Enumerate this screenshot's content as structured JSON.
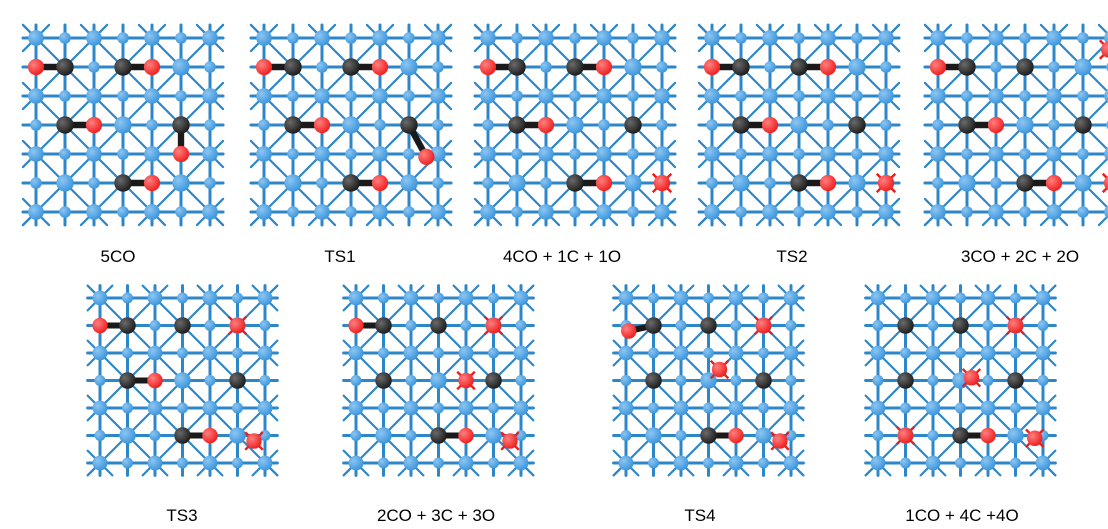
{
  "colors": {
    "lattice": "#2d86c8",
    "metal_atom": "#3a94dc",
    "metal_atom_highlight": "#8cc6f2",
    "carbon": "#1a1a1a",
    "oxygen": "#ee1c1c",
    "label_text": "#000000"
  },
  "panels": [
    {
      "id": "p1",
      "label": "5CO",
      "molecules": [
        {
          "type": "CO",
          "c": [
            1,
            1
          ],
          "o": [
            0,
            1
          ]
        },
        {
          "type": "CO",
          "c": [
            3,
            1
          ],
          "o": [
            4,
            1
          ]
        },
        {
          "type": "CO",
          "c": [
            1,
            3
          ],
          "o": [
            2,
            3
          ]
        },
        {
          "type": "CO",
          "c": [
            5,
            3
          ],
          "o": [
            5,
            4
          ]
        },
        {
          "type": "CO",
          "c": [
            3,
            5
          ],
          "o": [
            4,
            5
          ]
        }
      ]
    },
    {
      "id": "p2",
      "label": "TS1",
      "molecules": [
        {
          "type": "CO",
          "c": [
            1,
            1
          ],
          "o": [
            0,
            1
          ]
        },
        {
          "type": "CO",
          "c": [
            3,
            1
          ],
          "o": [
            4,
            1
          ]
        },
        {
          "type": "CO",
          "c": [
            1,
            3
          ],
          "o": [
            2,
            3
          ]
        },
        {
          "type": "CO",
          "c": [
            5,
            3
          ],
          "o": [
            5.6,
            4.1
          ]
        },
        {
          "type": "CO",
          "c": [
            3,
            5
          ],
          "o": [
            4,
            5
          ]
        }
      ]
    },
    {
      "id": "p3",
      "label": "4CO + 1C + 1O",
      "molecules": [
        {
          "type": "CO",
          "c": [
            1,
            1
          ],
          "o": [
            0,
            1
          ]
        },
        {
          "type": "CO",
          "c": [
            3,
            1
          ],
          "o": [
            4,
            1
          ]
        },
        {
          "type": "CO",
          "c": [
            1,
            3
          ],
          "o": [
            2,
            3
          ]
        },
        {
          "type": "C",
          "c": [
            5,
            3
          ]
        },
        {
          "type": "CO",
          "c": [
            3,
            5
          ],
          "o": [
            4,
            5
          ]
        },
        {
          "type": "O",
          "o": [
            6,
            5
          ]
        }
      ]
    },
    {
      "id": "p4",
      "label": "TS2",
      "molecules": [
        {
          "type": "CO",
          "c": [
            1,
            1
          ],
          "o": [
            0,
            1
          ]
        },
        {
          "type": "CO",
          "c": [
            3,
            1
          ],
          "o": [
            4,
            1
          ]
        },
        {
          "type": "CO",
          "c": [
            1,
            3
          ],
          "o": [
            2,
            3
          ]
        },
        {
          "type": "C",
          "c": [
            5,
            3
          ]
        },
        {
          "type": "CO",
          "c": [
            3,
            5
          ],
          "o": [
            4,
            5
          ]
        },
        {
          "type": "O",
          "o": [
            6,
            5
          ]
        }
      ]
    },
    {
      "id": "p5",
      "label": "3CO + 2C + 2O",
      "molecules": [
        {
          "type": "CO",
          "c": [
            1,
            1
          ],
          "o": [
            0,
            1
          ]
        },
        {
          "type": "C",
          "c": [
            3,
            1
          ]
        },
        {
          "type": "CO",
          "c": [
            1,
            3
          ],
          "o": [
            2,
            3
          ]
        },
        {
          "type": "C",
          "c": [
            5,
            3
          ]
        },
        {
          "type": "CO",
          "c": [
            3,
            5
          ],
          "o": [
            4,
            5
          ]
        },
        {
          "type": "O",
          "o": [
            5.9,
            0.4
          ]
        },
        {
          "type": "O",
          "o": [
            6,
            5
          ]
        }
      ]
    },
    {
      "id": "p6",
      "label": "TS3",
      "molecules": [
        {
          "type": "CO",
          "c": [
            1,
            1
          ],
          "o": [
            0,
            1
          ]
        },
        {
          "type": "C",
          "c": [
            3,
            1
          ]
        },
        {
          "type": "CO",
          "c": [
            1,
            3
          ],
          "o": [
            2,
            3
          ]
        },
        {
          "type": "C",
          "c": [
            5,
            3
          ]
        },
        {
          "type": "CO",
          "c": [
            3,
            5
          ],
          "o": [
            4,
            5
          ]
        },
        {
          "type": "O",
          "o": [
            5,
            1
          ]
        },
        {
          "type": "O",
          "o": [
            5.6,
            5.2
          ]
        }
      ]
    },
    {
      "id": "p7",
      "label": "2CO + 3C + 3O",
      "molecules": [
        {
          "type": "CO",
          "c": [
            1,
            1
          ],
          "o": [
            0,
            1
          ]
        },
        {
          "type": "C",
          "c": [
            3,
            1
          ]
        },
        {
          "type": "C",
          "c": [
            1,
            3
          ]
        },
        {
          "type": "C",
          "c": [
            5,
            3
          ]
        },
        {
          "type": "CO",
          "c": [
            3,
            5
          ],
          "o": [
            4,
            5
          ]
        },
        {
          "type": "O",
          "o": [
            5,
            1
          ]
        },
        {
          "type": "O",
          "o": [
            4,
            3
          ]
        },
        {
          "type": "O",
          "o": [
            5.6,
            5.2
          ]
        }
      ]
    },
    {
      "id": "p8",
      "label": "TS4",
      "molecules": [
        {
          "type": "CO",
          "c": [
            1,
            1
          ],
          "o": [
            0.1,
            1.2
          ]
        },
        {
          "type": "C",
          "c": [
            3,
            1
          ]
        },
        {
          "type": "C",
          "c": [
            1,
            3
          ]
        },
        {
          "type": "C",
          "c": [
            5,
            3
          ]
        },
        {
          "type": "CO",
          "c": [
            3,
            5
          ],
          "o": [
            4,
            5
          ]
        },
        {
          "type": "O",
          "o": [
            5,
            1
          ]
        },
        {
          "type": "O",
          "o": [
            3.4,
            2.6
          ]
        },
        {
          "type": "O",
          "o": [
            5.6,
            5.2
          ]
        }
      ]
    },
    {
      "id": "p9",
      "label": "1CO + 4C +4O",
      "molecules": [
        {
          "type": "C",
          "c": [
            1,
            1
          ]
        },
        {
          "type": "C",
          "c": [
            3,
            1
          ]
        },
        {
          "type": "C",
          "c": [
            1,
            3
          ]
        },
        {
          "type": "C",
          "c": [
            5,
            3
          ]
        },
        {
          "type": "CO",
          "c": [
            3,
            5
          ],
          "o": [
            4,
            5
          ]
        },
        {
          "type": "O",
          "o": [
            5,
            1
          ]
        },
        {
          "type": "O",
          "o": [
            3.4,
            2.9
          ]
        },
        {
          "type": "O",
          "o": [
            1,
            5
          ]
        },
        {
          "type": "O",
          "o": [
            5.7,
            5.1
          ]
        }
      ]
    }
  ]
}
